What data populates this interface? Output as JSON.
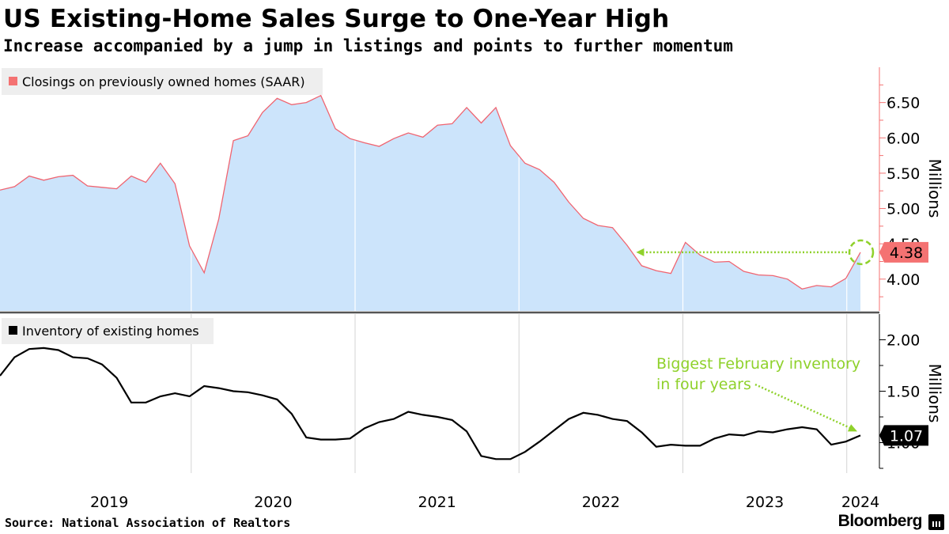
{
  "header": {
    "title": "US Existing-Home Sales Surge to One-Year High",
    "subtitle": "Increase accompanied by a jump in listings and points to further momentum"
  },
  "footer": {
    "source": "Source: National Association of Realtors",
    "brand": "Bloomberg"
  },
  "colors": {
    "sales_line": "#f06470",
    "sales_fill": "#cce4fb",
    "sales_legend": "#f47272",
    "sales_value_box": "#f47272",
    "inventory_line": "#000000",
    "annotation": "#8fd12b",
    "legend_bg": "#eeeeee",
    "divider": "#555555"
  },
  "chart_data": [
    {
      "type": "area",
      "legend": "Closings on previously owned homes (SAAR)",
      "ylabel": "Millions",
      "ylim": [
        3.55,
        7.0
      ],
      "yticks": [
        "4.00",
        "4.50",
        "5.00",
        "5.50",
        "6.00",
        "6.50"
      ],
      "last_value_label": "4.38",
      "x_start": "2018-11",
      "x_end": "2024-02",
      "values": [
        5.26,
        5.31,
        5.46,
        5.4,
        5.45,
        5.47,
        5.32,
        5.3,
        5.28,
        5.46,
        5.37,
        5.64,
        5.35,
        4.47,
        4.09,
        4.85,
        5.96,
        6.03,
        6.36,
        6.56,
        6.47,
        6.5,
        6.6,
        6.13,
        5.99,
        5.93,
        5.88,
        5.99,
        6.07,
        6.01,
        6.18,
        6.2,
        6.43,
        6.21,
        6.43,
        5.89,
        5.64,
        5.55,
        5.37,
        5.09,
        4.86,
        4.76,
        4.73,
        4.48,
        4.19,
        4.12,
        4.08,
        4.52,
        4.34,
        4.24,
        4.25,
        4.11,
        4.06,
        4.05,
        4.0,
        3.86,
        3.91,
        3.89,
        4.01,
        4.38
      ],
      "annotation": {
        "type": "dotted-arrow",
        "from_month": "2024-02",
        "to_month": "2022-09",
        "value": 4.38
      }
    },
    {
      "type": "line",
      "legend": "Inventory of existing homes",
      "ylabel": "Millions",
      "ylim": [
        0.75,
        2.25
      ],
      "yticks": [
        "1.00",
        "1.50",
        "2.00"
      ],
      "last_value_label": "1.07",
      "x_start": "2018-11",
      "x_end": "2024-02",
      "values": [
        1.65,
        1.83,
        1.91,
        1.92,
        1.9,
        1.83,
        1.82,
        1.76,
        1.63,
        1.39,
        1.39,
        1.45,
        1.48,
        1.45,
        1.55,
        1.53,
        1.5,
        1.49,
        1.46,
        1.42,
        1.28,
        1.05,
        1.03,
        1.03,
        1.04,
        1.14,
        1.2,
        1.23,
        1.3,
        1.27,
        1.25,
        1.22,
        1.11,
        0.87,
        0.84,
        0.84,
        0.91,
        1.01,
        1.12,
        1.23,
        1.29,
        1.27,
        1.23,
        1.21,
        1.1,
        0.96,
        0.98,
        0.97,
        0.97,
        1.04,
        1.08,
        1.07,
        1.11,
        1.1,
        1.13,
        1.15,
        1.13,
        0.98,
        1.01,
        1.07
      ],
      "annotation": {
        "type": "dotted-arrow",
        "lines": [
          "Biggest February inventory",
          "in four years"
        ],
        "to_month": "2024-02",
        "value": 1.07
      }
    }
  ],
  "xaxis": {
    "labels": [
      {
        "text": "2019",
        "month": "2019-07"
      },
      {
        "text": "2020",
        "month": "2020-07"
      },
      {
        "text": "2021",
        "month": "2021-07"
      },
      {
        "text": "2022",
        "month": "2022-07"
      },
      {
        "text": "2023",
        "month": "2023-07"
      },
      {
        "text": "2024",
        "month": "2024-02"
      }
    ],
    "year_boundaries": [
      "2020-01",
      "2021-01",
      "2022-01",
      "2023-01",
      "2024-01"
    ]
  }
}
